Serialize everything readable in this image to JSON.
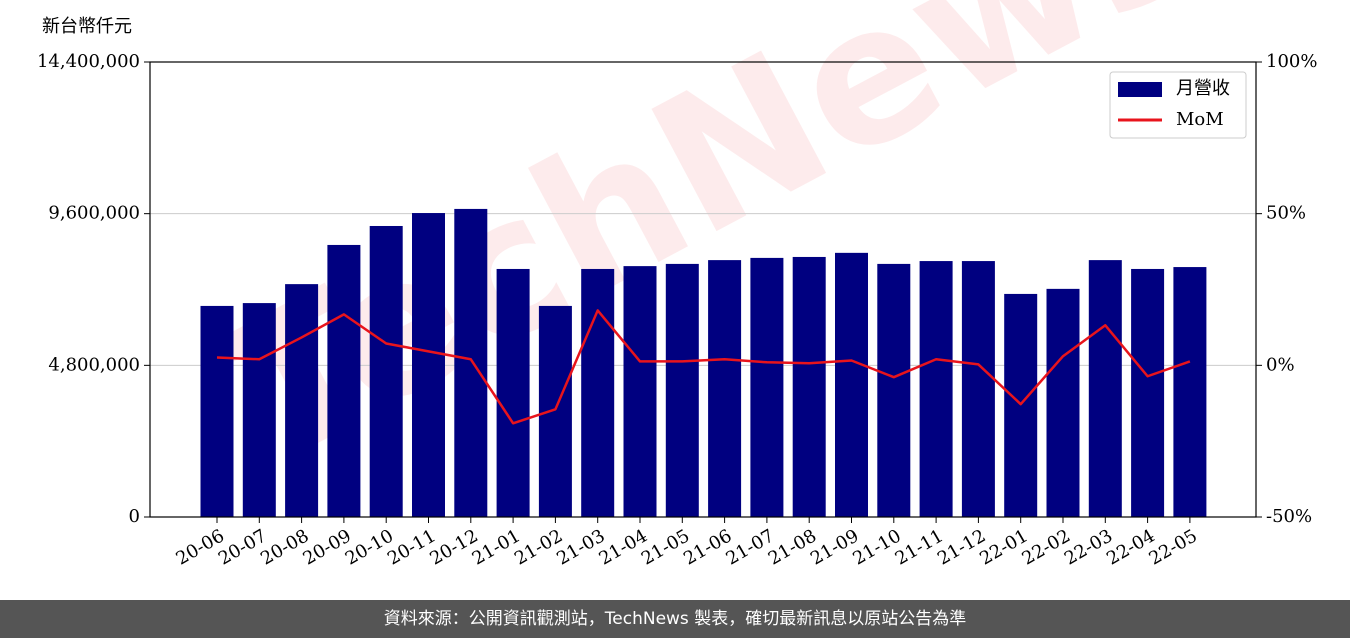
{
  "chart_data": {
    "type": "bar",
    "ylabel": "新台幣仟元",
    "watermark": "TechNews",
    "source": "資料來源：公開資訊觀測站，TechNews 製表，確切最新訊息以原站公告為準",
    "categories": [
      "20-06",
      "20-07",
      "20-08",
      "20-09",
      "20-10",
      "20-11",
      "20-12",
      "21-01",
      "21-02",
      "21-03",
      "21-04",
      "21-05",
      "21-06",
      "21-07",
      "21-08",
      "21-09",
      "21-10",
      "21-11",
      "21-12",
      "22-01",
      "22-02",
      "22-03",
      "22-04",
      "22-05"
    ],
    "series": [
      {
        "name": "月營收",
        "color": "#000080",
        "type": "bar",
        "values": [
          6680000,
          6770000,
          7370000,
          8610000,
          9210000,
          9620000,
          9750000,
          7850000,
          6680000,
          7850000,
          7940000,
          8010000,
          8130000,
          8200000,
          8230000,
          8360000,
          8010000,
          8100000,
          8100000,
          7060000,
          7220000,
          8130000,
          7850000,
          7910000
        ]
      },
      {
        "name": "MoM",
        "color": "#e8141c",
        "type": "line",
        "axis": "y2",
        "values": [
          2.6,
          2.0,
          9.2,
          16.8,
          7.2,
          4.6,
          2.0,
          -19.1,
          -14.5,
          18.1,
          1.3,
          1.3,
          2.0,
          1.0,
          0.7,
          1.6,
          -3.9,
          2.0,
          0.3,
          -12.8,
          3.0,
          13.2,
          -3.6,
          1.3
        ]
      }
    ],
    "ylim": [
      0,
      14400000
    ],
    "yticks": [
      {
        "value": 0,
        "label": "0"
      },
      {
        "value": 4800000,
        "label": "4,800,000"
      },
      {
        "value": 9600000,
        "label": "9,600,000"
      },
      {
        "value": 14400000,
        "label": "14,400,000"
      }
    ],
    "y2lim": [
      -50,
      100
    ],
    "y2ticks": [
      {
        "value": -50,
        "label": "-50%"
      },
      {
        "value": 0,
        "label": "0%"
      },
      {
        "value": 50,
        "label": "50%"
      },
      {
        "value": 100,
        "label": "100%"
      }
    ],
    "grid": true,
    "legend": "upper-right"
  }
}
